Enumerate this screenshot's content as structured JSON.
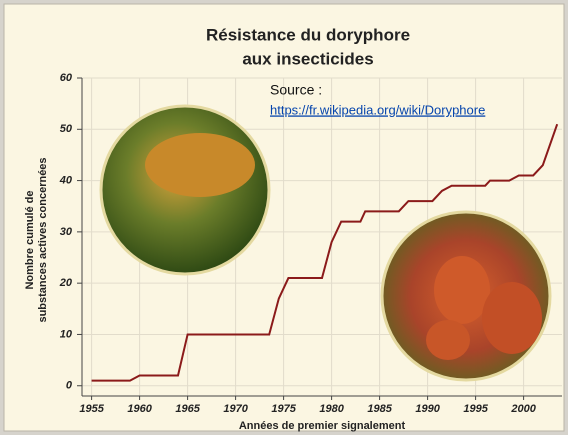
{
  "chart_data": {
    "type": "line",
    "title": [
      "Résistance du doryphore",
      "aux insecticides"
    ],
    "source_label": "Source :",
    "source_url": "https://fr.wikipedia.org/wiki/Doryphore",
    "x_label": "Années de premier signalement",
    "y_label": [
      "Nombre cumulé de",
      "substances actives concernées"
    ],
    "x": [
      1955,
      1959,
      1960,
      1964,
      1965,
      1973.5,
      1974.5,
      1975.5,
      1979,
      1980,
      1981,
      1983,
      1983.5,
      1987,
      1988,
      1990.5,
      1991.5,
      1992.5,
      1996,
      1996.5,
      1998.5,
      1999.5,
      2001,
      2002,
      2003.5
    ],
    "values": [
      1,
      1,
      2,
      2,
      10,
      10,
      17,
      21,
      21,
      28,
      32,
      32,
      34,
      34,
      36,
      36,
      38,
      39,
      39,
      40,
      40,
      41,
      41,
      43,
      51
    ],
    "color": "#8b1a1a",
    "xlim": [
      1954,
      2004
    ],
    "xticks": [
      1955,
      1960,
      1965,
      1970,
      1975,
      1980,
      1985,
      1990,
      1995,
      2000
    ],
    "ylim": [
      -2,
      60
    ],
    "yticks": [
      0,
      10,
      20,
      30,
      40,
      50,
      60
    ],
    "grid": true
  }
}
